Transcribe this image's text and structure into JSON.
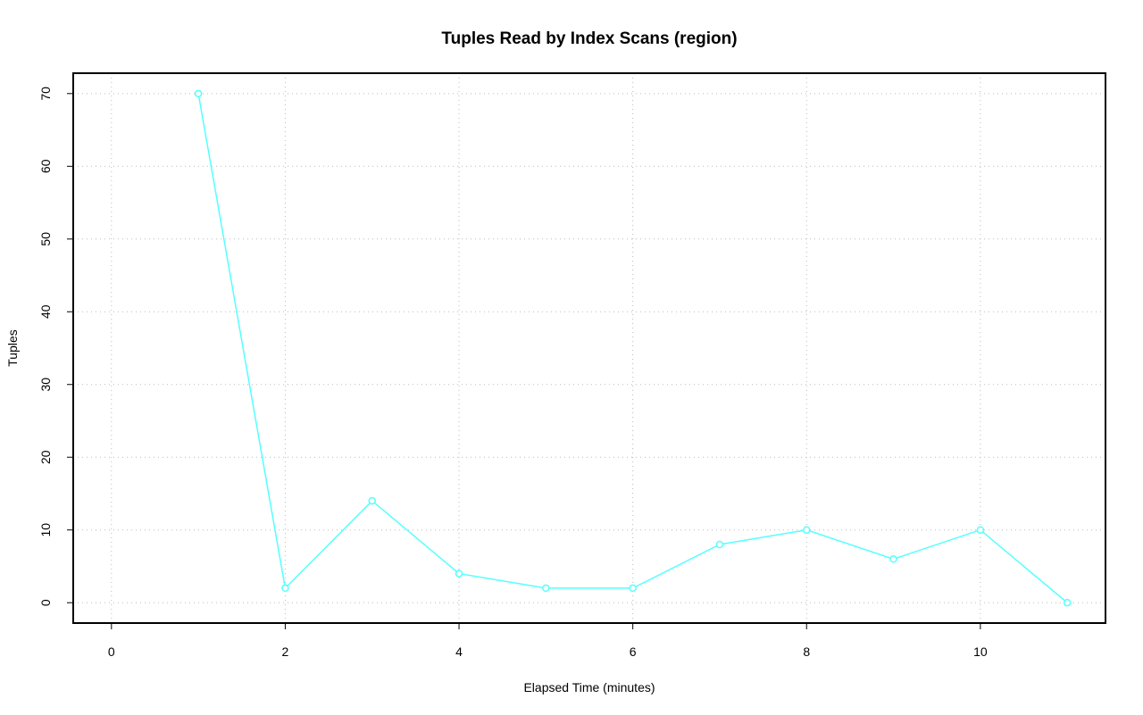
{
  "chart_data": {
    "type": "line",
    "title": "Tuples Read by Index Scans (region)",
    "x_label": "Elapsed Time (minutes)",
    "y_label": "Tuples",
    "x": [
      1,
      2,
      3,
      4,
      5,
      6,
      7,
      8,
      9,
      10,
      11
    ],
    "series": [
      {
        "color": "#55ffff",
        "values": [
          70,
          2,
          14,
          4,
          2,
          2,
          8,
          10,
          6,
          10,
          0
        ]
      }
    ],
    "xlim": [
      -0.44,
      11.44
    ],
    "xticks": [
      0,
      2,
      4,
      6,
      8,
      10
    ],
    "ylim": [
      -2.8,
      72.8
    ],
    "yticks": [
      0,
      10,
      20,
      30,
      40,
      50,
      60,
      70
    ],
    "grid": true
  }
}
